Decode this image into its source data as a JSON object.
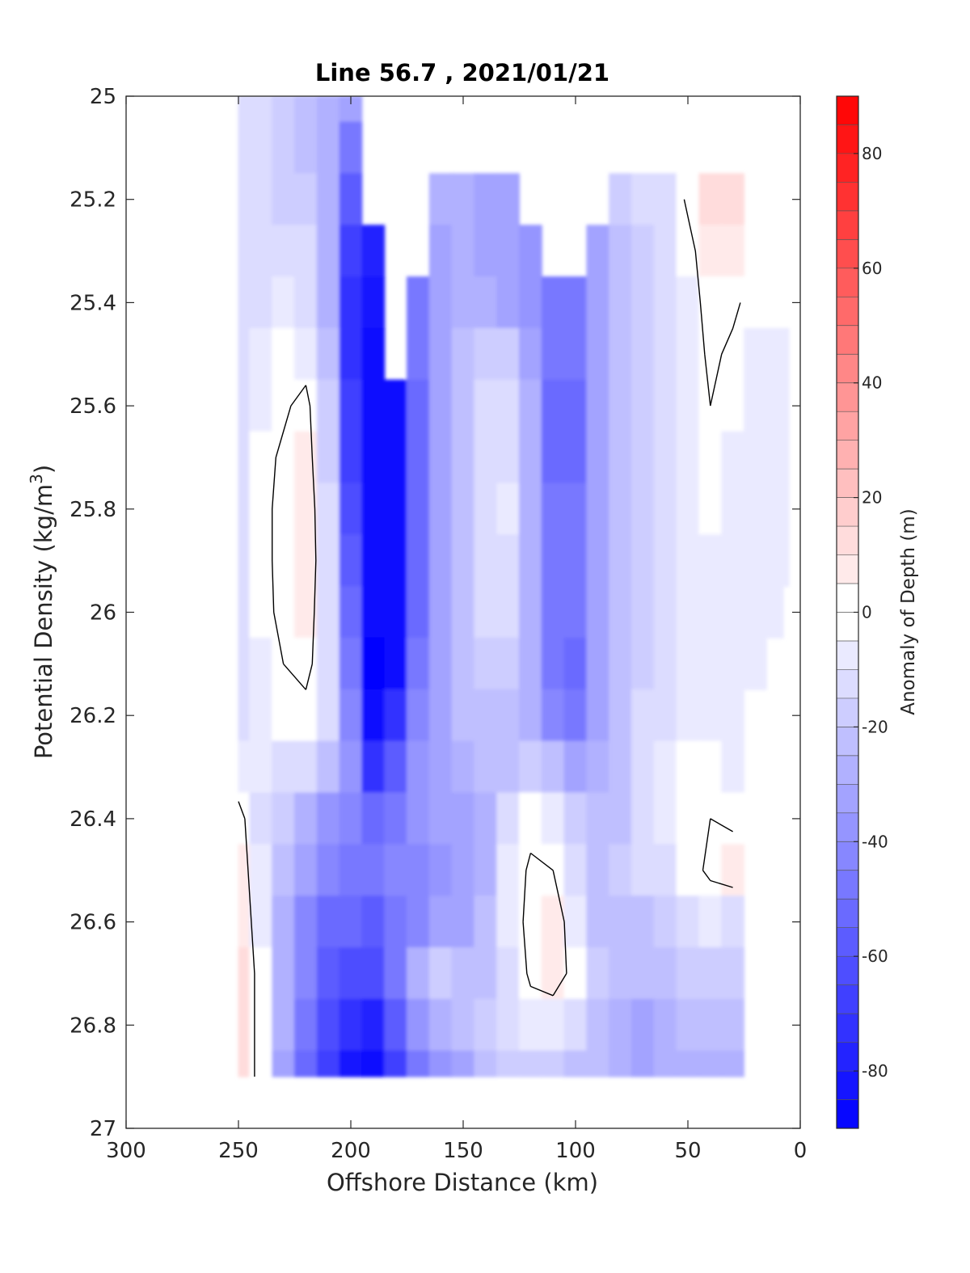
{
  "chart_data": {
    "type": "heatmap",
    "title": "Line 56.7 , 2021/01/21",
    "xlabel": "Offshore Distance (km)",
    "ylabel": "Potential Density (kg/m",
    "ylabel_sup": "3",
    "ylabel_close": ")",
    "colorbar_label": "Anomaly of Depth (m)",
    "xlim": [
      300,
      0
    ],
    "x_reversed": true,
    "ylim": [
      25,
      27
    ],
    "y_reversed": true,
    "clim": [
      -90,
      90
    ],
    "x_ticks": [
      300,
      250,
      200,
      150,
      100,
      50,
      0
    ],
    "x_tick_labels": [
      "300",
      "250",
      "200",
      "150",
      "100",
      "50",
      "0"
    ],
    "y_ticks": [
      25,
      25.2,
      25.4,
      25.6,
      25.8,
      26,
      26.2,
      26.4,
      26.6,
      26.8,
      27
    ],
    "y_tick_labels": [
      "25",
      "25.2",
      "25.4",
      "25.6",
      "25.8",
      "26",
      "26.2",
      "26.4",
      "26.6",
      "26.8",
      "27"
    ],
    "colorbar_ticks": [
      -80,
      -60,
      -40,
      -20,
      0,
      20,
      40,
      60,
      80
    ],
    "colorbar_tick_labels": [
      "-80",
      "-60",
      "-40",
      "-20",
      "0",
      "20",
      "40",
      "60",
      "80"
    ],
    "colormap": {
      "low": "#0000ff",
      "mid": "#ffffff",
      "high": "#ff0000"
    },
    "contour_levels_step": 5,
    "x": [
      250,
      240,
      230,
      220,
      210,
      200,
      190,
      180,
      170,
      160,
      150,
      140,
      130,
      120,
      110,
      100,
      90,
      80,
      70,
      60,
      50,
      40,
      30,
      20,
      10,
      5
    ],
    "y": [
      25.0,
      25.1,
      25.2,
      25.3,
      25.4,
      25.5,
      25.6,
      25.7,
      25.8,
      25.9,
      26.0,
      26.1,
      26.2,
      26.3,
      26.4,
      26.5,
      26.6,
      26.7,
      26.8,
      26.9
    ],
    "z": [
      [
        -12,
        -14,
        -16,
        -20,
        -26,
        -32,
        null,
        null,
        null,
        null,
        null,
        null,
        null,
        null,
        null,
        null,
        null,
        null,
        null,
        null,
        null,
        null,
        null,
        null,
        null,
        null
      ],
      [
        -12,
        -14,
        -16,
        -20,
        -28,
        -45,
        null,
        null,
        null,
        null,
        null,
        null,
        null,
        null,
        null,
        null,
        null,
        null,
        null,
        null,
        null,
        null,
        null,
        null,
        null,
        null
      ],
      [
        -12,
        -14,
        -15,
        -18,
        -28,
        -55,
        null,
        null,
        null,
        -28,
        -26,
        -30,
        -32,
        null,
        null,
        null,
        null,
        -15,
        -12,
        -10,
        2,
        10,
        12,
        null,
        null,
        null
      ],
      [
        -12,
        -13,
        -12,
        -14,
        -28,
        -65,
        -75,
        null,
        null,
        -30,
        -28,
        -30,
        -32,
        -38,
        null,
        null,
        -34,
        -20,
        -16,
        -12,
        -4,
        8,
        6,
        null,
        0,
        null
      ],
      [
        -12,
        -10,
        -8,
        -10,
        -26,
        -70,
        -80,
        null,
        -45,
        -30,
        -26,
        -28,
        -30,
        -38,
        -48,
        -45,
        -30,
        -20,
        -16,
        -12,
        -5,
        4,
        2,
        -4,
        -4,
        null
      ],
      [
        -10,
        -8,
        -4,
        -6,
        -22,
        -70,
        -85,
        null,
        -45,
        -30,
        -22,
        -18,
        -18,
        -30,
        -48,
        -48,
        -32,
        -22,
        -16,
        -12,
        -6,
        2,
        -2,
        -6,
        -8,
        -8
      ],
      [
        -10,
        -6,
        -2,
        4,
        -18,
        -68,
        -88,
        -85,
        -50,
        -30,
        -20,
        -12,
        -12,
        -28,
        -50,
        -50,
        -34,
        -22,
        -16,
        -12,
        -6,
        0,
        -4,
        -8,
        -8,
        -8
      ],
      [
        -10,
        -4,
        2,
        6,
        -15,
        -65,
        -88,
        -85,
        -50,
        -30,
        -20,
        -10,
        -10,
        -26,
        -50,
        -50,
        -34,
        -22,
        -16,
        -12,
        -6,
        -2,
        -6,
        -8,
        -8,
        -8
      ],
      [
        -10,
        -4,
        4,
        8,
        -12,
        -60,
        -88,
        -85,
        -50,
        -30,
        -20,
        -10,
        -8,
        -25,
        -48,
        -48,
        -32,
        -22,
        -16,
        -12,
        -7,
        -4,
        -6,
        -8,
        -8,
        -8
      ],
      [
        -10,
        -4,
        4,
        8,
        -10,
        -55,
        -88,
        -85,
        -50,
        -30,
        -20,
        -12,
        -10,
        -25,
        -45,
        -45,
        -30,
        -22,
        -16,
        -12,
        -8,
        -6,
        -6,
        -8,
        -8,
        -8
      ],
      [
        -10,
        -4,
        3,
        6,
        -10,
        -50,
        -88,
        -85,
        -50,
        -30,
        -20,
        -14,
        -14,
        -26,
        -45,
        -48,
        -32,
        -22,
        -16,
        -12,
        -8,
        -6,
        -6,
        -8,
        -8,
        null
      ],
      [
        -10,
        -5,
        0,
        4,
        -10,
        -45,
        -90,
        -85,
        -48,
        -30,
        -22,
        -18,
        -18,
        -28,
        -45,
        -50,
        -34,
        -24,
        -16,
        -12,
        -8,
        -6,
        -6,
        -8,
        null,
        null
      ],
      [
        -10,
        -6,
        -4,
        -4,
        -12,
        -40,
        -86,
        -70,
        -42,
        -30,
        -24,
        -22,
        -22,
        -28,
        -42,
        -45,
        -32,
        -22,
        -14,
        -10,
        -6,
        -6,
        -6,
        null,
        null,
        null
      ],
      [
        -8,
        -8,
        -10,
        -12,
        -22,
        -36,
        -70,
        -55,
        -38,
        -30,
        -26,
        -24,
        -20,
        -16,
        -24,
        -30,
        -28,
        -20,
        -14,
        -8,
        -2,
        -4,
        -8,
        null,
        null,
        null
      ],
      [
        4,
        -10,
        -18,
        -28,
        -36,
        -40,
        -50,
        -45,
        -38,
        -34,
        -30,
        -26,
        -12,
        -4,
        -8,
        -18,
        -24,
        -20,
        -14,
        -8,
        -4,
        0,
        -2,
        null,
        null,
        null
      ],
      [
        6,
        -8,
        -22,
        -34,
        -44,
        -48,
        -48,
        -42,
        -40,
        -36,
        -32,
        -26,
        -8,
        2,
        0,
        -10,
        -20,
        -18,
        -14,
        -10,
        -4,
        2,
        6,
        null,
        null,
        null
      ],
      [
        8,
        -6,
        -26,
        -40,
        -50,
        -54,
        -55,
        -48,
        -40,
        -34,
        -30,
        -24,
        -8,
        4,
        6,
        -6,
        -20,
        -22,
        -20,
        -16,
        -10,
        -8,
        -12,
        null,
        null,
        null
      ],
      [
        10,
        -4,
        -28,
        -44,
        -56,
        -62,
        -62,
        -45,
        -26,
        -18,
        -20,
        -20,
        -10,
        2,
        6,
        -4,
        -18,
        -24,
        -24,
        -22,
        -18,
        -18,
        -18,
        null,
        null,
        null
      ],
      [
        10,
        -4,
        -28,
        -46,
        -60,
        -70,
        -75,
        -55,
        -35,
        -26,
        -22,
        -18,
        -12,
        -6,
        -8,
        -12,
        -22,
        -28,
        -34,
        -28,
        -24,
        -24,
        -24,
        null,
        null,
        null
      ],
      [
        10,
        -4,
        -30,
        -50,
        -65,
        -80,
        -85,
        -65,
        -45,
        -35,
        -30,
        -24,
        -18,
        -16,
        -18,
        -20,
        -24,
        -28,
        -30,
        -28,
        -26,
        -26,
        -26,
        null,
        null,
        null
      ]
    ]
  }
}
